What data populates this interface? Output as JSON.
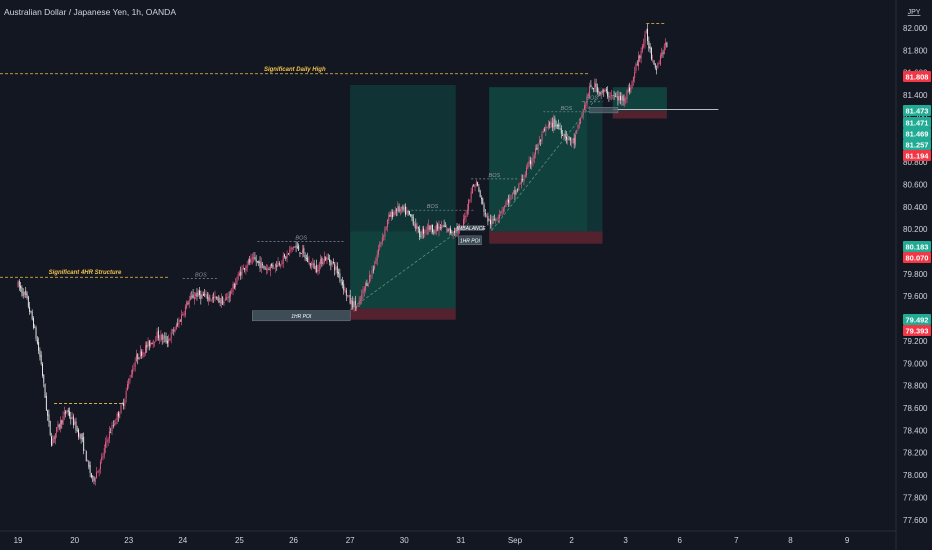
{
  "header": {
    "title": "Australian Dollar / Japanese Yen, 1h, OANDA",
    "currency": "JPY"
  },
  "colors": {
    "background": "#131722",
    "bull": "#ef5f8a",
    "bear": "#f2f2f2",
    "level_line": "#f3c44d",
    "bos_line": "#8a8f9c",
    "zone_green": "#0f4d45",
    "zone_red": "#5c2430",
    "poi_box": "#4a5a66"
  },
  "chart_data": {
    "type": "candlestick",
    "yticks": [
      77.6,
      77.8,
      78.0,
      78.2,
      78.4,
      78.6,
      78.8,
      79.0,
      79.2,
      79.4,
      79.6,
      79.8,
      80.0,
      80.2,
      80.4,
      80.6,
      80.8,
      81.0,
      81.2,
      81.4,
      81.6,
      81.8,
      82.0
    ],
    "ylim": [
      77.5,
      82.25
    ],
    "xticks": [
      {
        "label": "19",
        "x": 0
      },
      {
        "label": "20",
        "x": 22
      },
      {
        "label": "23",
        "x": 43
      },
      {
        "label": "24",
        "x": 64
      },
      {
        "label": "25",
        "x": 86
      },
      {
        "label": "26",
        "x": 107
      },
      {
        "label": "27",
        "x": 129
      },
      {
        "label": "30",
        "x": 150
      },
      {
        "label": "31",
        "x": 172
      },
      {
        "label": "Sep",
        "x": 193
      },
      {
        "label": "2",
        "x": 215
      },
      {
        "label": "3",
        "x": 236
      },
      {
        "label": "6",
        "x": 257
      },
      {
        "label": "7",
        "x": 279
      },
      {
        "label": "8",
        "x": 300
      },
      {
        "label": "9",
        "x": 322
      }
    ],
    "xlim": [
      -7,
      341
    ],
    "path": [
      [
        0,
        79.7
      ],
      [
        3,
        79.6
      ],
      [
        6,
        79.35
      ],
      [
        9,
        79.0
      ],
      [
        11,
        78.6
      ],
      [
        13,
        78.3
      ],
      [
        16,
        78.45
      ],
      [
        19,
        78.58
      ],
      [
        22,
        78.45
      ],
      [
        25,
        78.3
      ],
      [
        27,
        78.1
      ],
      [
        29,
        77.95
      ],
      [
        32,
        78.1
      ],
      [
        35,
        78.35
      ],
      [
        38,
        78.5
      ],
      [
        41,
        78.65
      ],
      [
        43,
        78.85
      ],
      [
        46,
        79.05
      ],
      [
        50,
        79.15
      ],
      [
        54,
        79.25
      ],
      [
        58,
        79.2
      ],
      [
        62,
        79.35
      ],
      [
        64,
        79.45
      ],
      [
        66,
        79.55
      ],
      [
        69,
        79.62
      ],
      [
        72,
        79.6
      ],
      [
        76,
        79.58
      ],
      [
        80,
        79.55
      ],
      [
        83,
        79.65
      ],
      [
        86,
        79.8
      ],
      [
        89,
        79.9
      ],
      [
        92,
        79.92
      ],
      [
        96,
        79.85
      ],
      [
        100,
        79.88
      ],
      [
        104,
        79.95
      ],
      [
        107,
        80.05
      ],
      [
        110,
        80.0
      ],
      [
        113,
        79.9
      ],
      [
        116,
        79.85
      ],
      [
        119,
        79.95
      ],
      [
        122,
        79.9
      ],
      [
        125,
        79.78
      ],
      [
        127,
        79.65
      ],
      [
        129,
        79.55
      ],
      [
        132,
        79.5
      ],
      [
        135,
        79.7
      ],
      [
        138,
        79.85
      ],
      [
        141,
        80.1
      ],
      [
        144,
        80.3
      ],
      [
        147,
        80.38
      ],
      [
        150,
        80.36
      ],
      [
        153,
        80.3
      ],
      [
        156,
        80.15
      ],
      [
        159,
        80.22
      ],
      [
        162,
        80.2
      ],
      [
        165,
        80.22
      ],
      [
        168,
        80.18
      ],
      [
        170,
        80.2
      ],
      [
        172,
        80.18
      ],
      [
        174,
        80.35
      ],
      [
        176,
        80.55
      ],
      [
        178,
        80.62
      ],
      [
        180,
        80.45
      ],
      [
        182,
        80.3
      ],
      [
        184,
        80.25
      ],
      [
        187,
        80.35
      ],
      [
        190,
        80.45
      ],
      [
        193,
        80.52
      ],
      [
        196,
        80.65
      ],
      [
        199,
        80.8
      ],
      [
        202,
        80.95
      ],
      [
        205,
        81.1
      ],
      [
        208,
        81.15
      ],
      [
        210,
        81.12
      ],
      [
        212,
        81.05
      ],
      [
        214,
        81.0
      ],
      [
        216,
        80.98
      ],
      [
        218,
        81.15
      ],
      [
        220,
        81.3
      ],
      [
        222,
        81.45
      ],
      [
        224,
        81.48
      ],
      [
        226,
        81.43
      ],
      [
        228,
        81.42
      ],
      [
        230,
        81.4
      ],
      [
        232,
        81.38
      ],
      [
        234,
        81.36
      ],
      [
        236,
        81.4
      ],
      [
        238,
        81.47
      ],
      [
        240,
        81.65
      ],
      [
        242,
        81.8
      ],
      [
        244,
        81.95
      ],
      [
        246,
        81.75
      ],
      [
        248,
        81.65
      ],
      [
        250,
        81.78
      ],
      [
        252,
        81.85
      ]
    ],
    "levels": [
      {
        "label": "Significant Daily High",
        "price": 81.59,
        "x0": -7,
        "x1": 222
      },
      {
        "label": "Significant 4HR Structure",
        "price": 79.77,
        "x0": -7,
        "x1": 59
      }
    ],
    "peak_lines": [
      {
        "price": 78.64,
        "x0": 14,
        "x1": 41
      },
      {
        "price": 82.04,
        "x0": 244,
        "x1": 251
      }
    ],
    "bos": [
      {
        "label": "BOS",
        "price": 79.76,
        "x0": 64,
        "x1": 78
      },
      {
        "label": "BOS",
        "price": 80.09,
        "x0": 93,
        "x1": 127
      },
      {
        "label": "BOS",
        "price": 80.37,
        "x0": 145,
        "x1": 177
      },
      {
        "label": "BOS",
        "price": 80.65,
        "x0": 176,
        "x1": 194
      },
      {
        "label": "BOS",
        "price": 81.25,
        "x0": 204,
        "x1": 222
      },
      {
        "label": "BOS",
        "price": 81.34,
        "x0": 219,
        "x1": 227
      }
    ],
    "trade_zones": [
      {
        "x0": 129,
        "x1": 170,
        "entry": 79.49,
        "target": 81.49,
        "stop": 79.39,
        "active_x1": 170,
        "active_top": 80.18
      },
      {
        "x0": 183,
        "x1": 227,
        "entry": 80.18,
        "target": 81.47,
        "stop": 80.07,
        "active_x1": 221,
        "active_top": 81.47
      },
      {
        "x0": 231,
        "x1": 252,
        "entry": 81.26,
        "target": 81.47,
        "stop": 81.19,
        "active_x1": 252,
        "active_top": 81.47
      }
    ],
    "poi_boxes": [
      {
        "label": "1HR POI",
        "x0": 91,
        "x1": 129,
        "top": 79.47,
        "bottom": 79.38
      },
      {
        "label": "1HR POI",
        "x0": 171,
        "x1": 180,
        "top": 80.14,
        "bottom": 80.06
      },
      {
        "label": "IMBALANCE",
        "x0": 171,
        "x1": 181,
        "top": 80.23,
        "bottom": 80.19
      },
      {
        "label": "",
        "x0": 222,
        "x1": 233,
        "top": 81.29,
        "bottom": 81.24
      }
    ],
    "trend_lines": [
      {
        "x0": 129,
        "y0": 79.48,
        "x1": 175,
        "y1": 80.25
      },
      {
        "x0": 184,
        "y0": 80.19,
        "x1": 227,
        "y1": 81.44
      }
    ],
    "last_level_line": {
      "price": 81.27,
      "x0": 231,
      "x1": 272
    },
    "price_labels": [
      {
        "value": "81.808",
        "color": "#f23645"
      },
      {
        "value": "81.473",
        "color": "#22ab94"
      },
      {
        "value": "81.471",
        "color": "#22ab94"
      },
      {
        "value": "81.469",
        "color": "#22ab94"
      },
      {
        "value": "81.257",
        "color": "#22ab94"
      },
      {
        "value": "81.194",
        "color": "#f23645"
      },
      {
        "value": "80.183",
        "color": "#22ab94"
      },
      {
        "value": "80.070",
        "color": "#f23645"
      },
      {
        "value": "79.492",
        "color": "#22ab94"
      },
      {
        "value": "79.393",
        "color": "#f23645"
      }
    ]
  }
}
